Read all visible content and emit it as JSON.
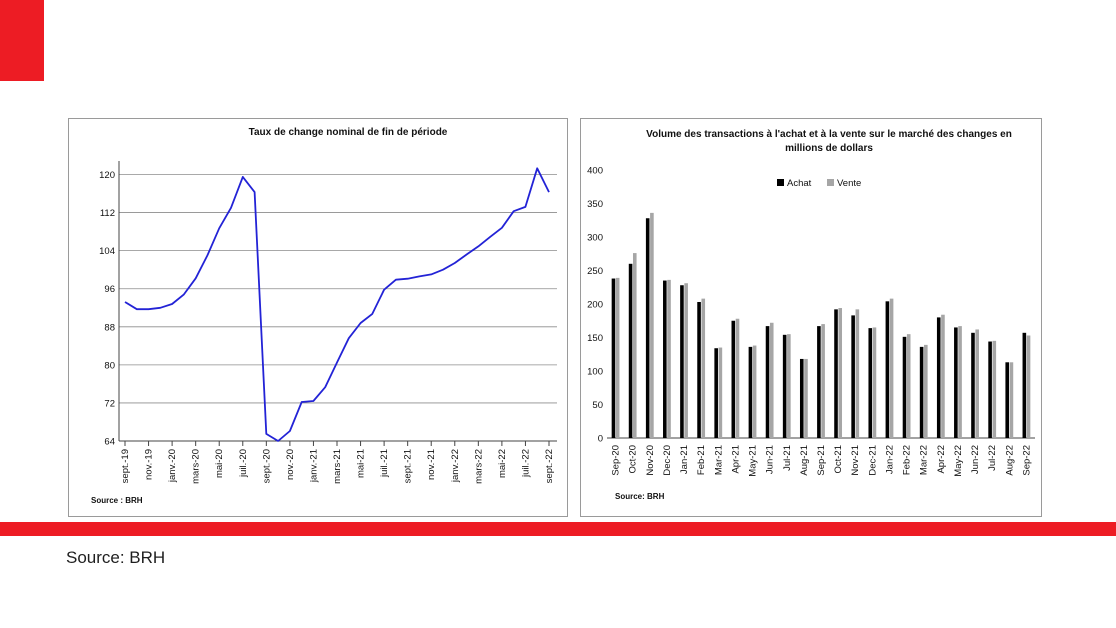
{
  "slide": {
    "source_text": "Source: BRH",
    "accent": "#ed1c24"
  },
  "chart_data": [
    {
      "type": "line",
      "title": "Taux de change nominal de fin de période",
      "source": "Source : BRH",
      "ylim": [
        64,
        122
      ],
      "yticks": [
        64,
        72,
        80,
        88,
        96,
        104,
        112,
        120
      ],
      "grid": true,
      "line_color": "#2323d6",
      "x_tick_labels": [
        "sept.-19",
        "nov.-19",
        "janv.-20",
        "mars-20",
        "mai-20",
        "juil.-20",
        "sept.-20",
        "nov.-20",
        "janv.-21",
        "mars-21",
        "mai-21",
        "juil.-21",
        "sept.-21",
        "nov.-21",
        "janv.-22",
        "mars-22",
        "mai-22",
        "juil.-22",
        "sept.-22"
      ],
      "series": [
        {
          "values": [
            93.2,
            91.7,
            91.7,
            92.0,
            92.8,
            94.8,
            98.2,
            103.0,
            108.7,
            113.0,
            119.5,
            116.3,
            65.5,
            64.0,
            66.1,
            72.2,
            72.4,
            75.3,
            80.5,
            85.6,
            88.8,
            90.7,
            95.8,
            97.9,
            98.1,
            98.6,
            99.0,
            100.0,
            101.4,
            103.2,
            104.9,
            106.9,
            108.8,
            112.3,
            113.2,
            121.3,
            116.3
          ]
        }
      ]
    },
    {
      "type": "bar",
      "title": "Volume des transactions à l'achat et à la vente sur le marché des changes en millions de dollars",
      "title_lines": [
        "Volume des transactions à l'achat et à la vente sur le marché des changes en",
        "millions de dollars"
      ],
      "source": "Source: BRH",
      "ylim": [
        0,
        400
      ],
      "yticks": [
        0,
        50,
        100,
        150,
        200,
        250,
        300,
        350,
        400
      ],
      "grid": false,
      "legend_position": "top",
      "categories": [
        "Sep-20",
        "Oct-20",
        "Nov-20",
        "Dec-20",
        "Jan-21",
        "Feb-21",
        "Mar-21",
        "Apr-21",
        "May-21",
        "Jun-21",
        "Jul-21",
        "Aug-21",
        "Sep-21",
        "Oct-21",
        "Nov-21",
        "Dec-21",
        "Jan-22",
        "Feb-22",
        "Mar-22",
        "Apr-22",
        "May-22",
        "Jun-22",
        "Jul-22",
        "Aug-22",
        "Sep-22"
      ],
      "series": [
        {
          "name": "Achat",
          "color": "#000000",
          "values": [
            238,
            260,
            328,
            235,
            228,
            203,
            134,
            175,
            136,
            167,
            154,
            118,
            167,
            192,
            183,
            164,
            204,
            151,
            136,
            180,
            165,
            157,
            144,
            113,
            157
          ]
        },
        {
          "name": "Vente",
          "color": "#a6a6a6",
          "values": [
            239,
            276,
            336,
            236,
            231,
            208,
            135,
            178,
            138,
            172,
            155,
            118,
            170,
            194,
            192,
            165,
            208,
            155,
            139,
            184,
            167,
            162,
            145,
            113,
            153
          ]
        }
      ]
    }
  ]
}
